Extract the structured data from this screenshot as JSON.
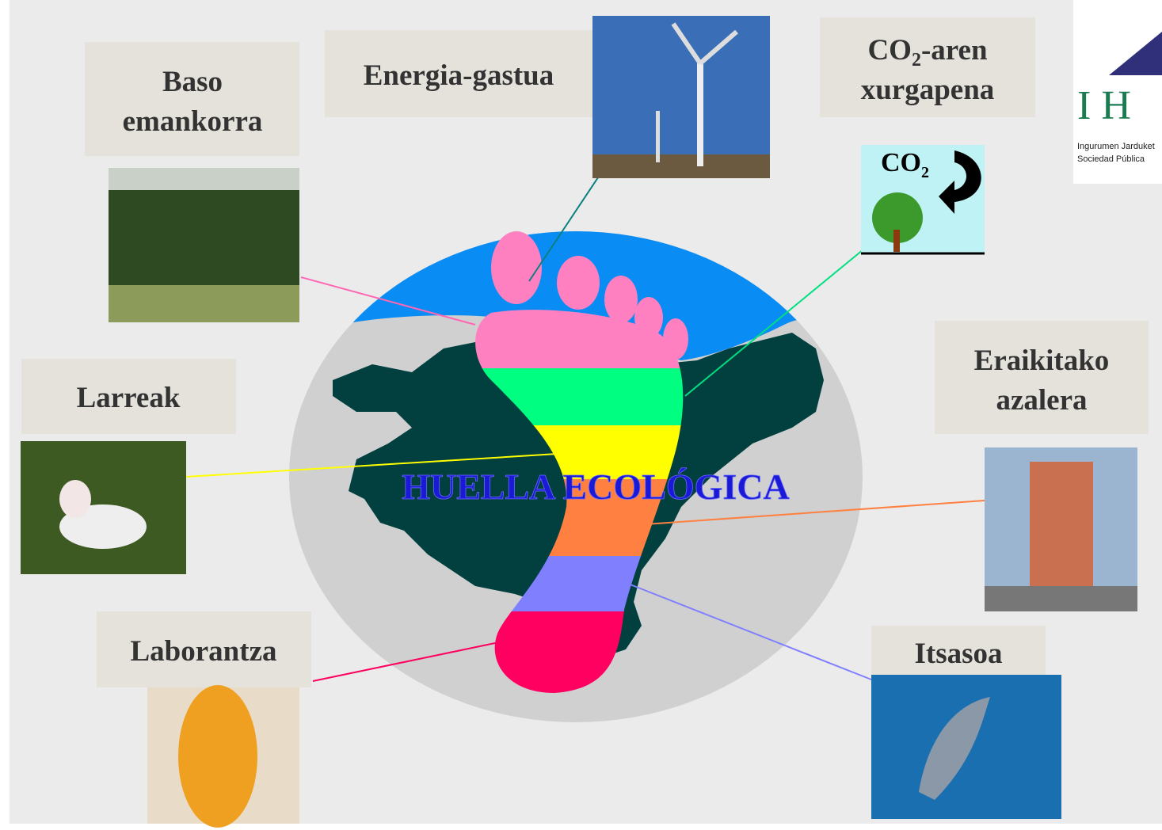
{
  "title": "HUELLA ECOLÓGICA",
  "labels": {
    "baso": [
      "Baso",
      "emankorra"
    ],
    "energia": [
      "Energia-gastua"
    ],
    "co2": {
      "main": "CO",
      "sub": "2",
      "rest": "-aren",
      "line2": "xurgapena"
    },
    "eraikitako": [
      "Eraikitako",
      "azalera"
    ],
    "larreak": [
      "Larreak"
    ],
    "laborantza": [
      "Laborantza"
    ],
    "itsasoa": [
      "Itsasoa"
    ]
  },
  "co2_icon": {
    "main": "CO",
    "sub": "2"
  },
  "logo": {
    "letters": "I H",
    "line1": "Ingurumen Jarduket",
    "line2": "Sociedad Pública"
  }
}
